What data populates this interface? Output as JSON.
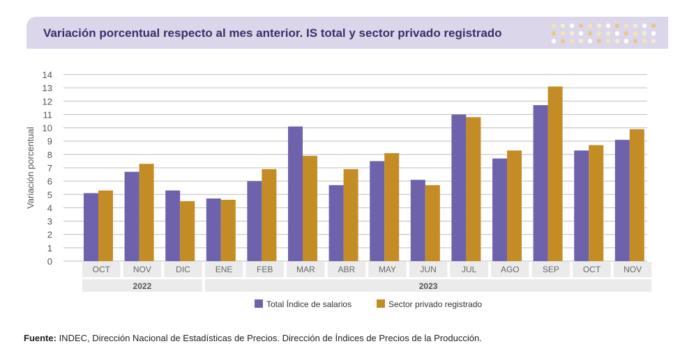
{
  "title": "Variación porcentual respecto al mes anterior. IS total y sector privado registrado",
  "source_label": "Fuente:",
  "source_text": " INDEC, Dirección Nacional de Estadísticas de Precios. Dirección de Índices de Precios de la Producción.",
  "colors": {
    "series1": "#6d62ab",
    "series2": "#c48c24",
    "title_bg": "#dcd6ea",
    "title_text": "#3b2f6b",
    "grid": "#bdbdbd",
    "label_bg": "#ebebeb"
  },
  "chart_data": {
    "type": "bar",
    "ylabel": "Variación porcentual",
    "xlabel": "",
    "ylim": [
      0,
      14
    ],
    "yticks": [
      0,
      1,
      2,
      3,
      4,
      5,
      6,
      7,
      8,
      9,
      10,
      11,
      12,
      13,
      14
    ],
    "grid": true,
    "legend_position": "bottom",
    "categories": [
      "OCT",
      "NOV",
      "DIC",
      "ENE",
      "FEB",
      "MAR",
      "ABR",
      "MAY",
      "JUN",
      "JUL",
      "AGO",
      "SEP",
      "OCT",
      "NOV"
    ],
    "years": [
      {
        "label": "2022",
        "count": 3
      },
      {
        "label": "2023",
        "count": 11
      }
    ],
    "series": [
      {
        "name": "Total Índice de salarios",
        "values": [
          5.1,
          6.7,
          5.3,
          4.7,
          6.0,
          10.1,
          5.7,
          7.5,
          6.1,
          11.0,
          7.7,
          11.7,
          8.3,
          9.1
        ]
      },
      {
        "name": "Sector privado registrado",
        "values": [
          5.3,
          7.3,
          4.5,
          4.6,
          6.9,
          7.9,
          6.9,
          8.1,
          5.7,
          10.8,
          8.3,
          13.1,
          8.7,
          9.9
        ]
      }
    ]
  }
}
